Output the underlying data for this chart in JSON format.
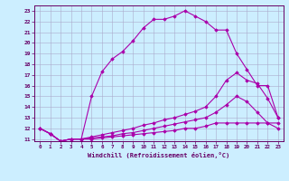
{
  "xlabel": "Windchill (Refroidissement éolien,°C)",
  "bg_color": "#cceeff",
  "grid_color": "#aaaacc",
  "line_color": "#aa00aa",
  "xlim": [
    -0.5,
    23.5
  ],
  "ylim": [
    10.8,
    23.5
  ],
  "xticks": [
    0,
    1,
    2,
    3,
    4,
    5,
    6,
    7,
    8,
    9,
    10,
    11,
    12,
    13,
    14,
    15,
    16,
    17,
    18,
    19,
    20,
    21,
    22,
    23
  ],
  "yticks": [
    11,
    12,
    13,
    14,
    15,
    16,
    17,
    18,
    19,
    20,
    21,
    22,
    23
  ],
  "series": [
    {
      "x": [
        0,
        1,
        2,
        3,
        4,
        5,
        6,
        7,
        8,
        9,
        10,
        11,
        12,
        13,
        14,
        15,
        16,
        17,
        18,
        19,
        20,
        21,
        22,
        23
      ],
      "y": [
        12.0,
        11.5,
        10.8,
        11.0,
        11.0,
        15.0,
        17.3,
        18.5,
        19.2,
        20.2,
        21.4,
        22.2,
        22.2,
        22.5,
        23.0,
        22.5,
        22.0,
        21.2,
        21.2,
        19.0,
        17.5,
        16.0,
        16.0,
        13.0
      ]
    },
    {
      "x": [
        0,
        1,
        2,
        3,
        4,
        5,
        6,
        7,
        8,
        9,
        10,
        11,
        12,
        13,
        14,
        15,
        16,
        17,
        18,
        19,
        20,
        21,
        22,
        23
      ],
      "y": [
        12.0,
        11.5,
        10.8,
        11.0,
        11.0,
        11.2,
        11.4,
        11.6,
        11.8,
        12.0,
        12.3,
        12.5,
        12.8,
        13.0,
        13.3,
        13.6,
        14.0,
        15.0,
        16.5,
        17.2,
        16.5,
        16.2,
        14.8,
        13.0
      ]
    },
    {
      "x": [
        0,
        1,
        2,
        3,
        4,
        5,
        6,
        7,
        8,
        9,
        10,
        11,
        12,
        13,
        14,
        15,
        16,
        17,
        18,
        19,
        20,
        21,
        22,
        23
      ],
      "y": [
        12.0,
        11.5,
        10.8,
        11.0,
        11.0,
        11.1,
        11.2,
        11.3,
        11.5,
        11.6,
        11.8,
        12.0,
        12.2,
        12.4,
        12.6,
        12.8,
        13.0,
        13.5,
        14.2,
        15.0,
        14.5,
        13.5,
        12.5,
        12.0
      ]
    },
    {
      "x": [
        0,
        1,
        2,
        3,
        4,
        5,
        6,
        7,
        8,
        9,
        10,
        11,
        12,
        13,
        14,
        15,
        16,
        17,
        18,
        19,
        20,
        21,
        22,
        23
      ],
      "y": [
        12.0,
        11.5,
        10.8,
        11.0,
        11.0,
        11.0,
        11.1,
        11.2,
        11.3,
        11.4,
        11.5,
        11.6,
        11.7,
        11.8,
        12.0,
        12.0,
        12.2,
        12.5,
        12.5,
        12.5,
        12.5,
        12.5,
        12.5,
        12.5
      ]
    }
  ]
}
